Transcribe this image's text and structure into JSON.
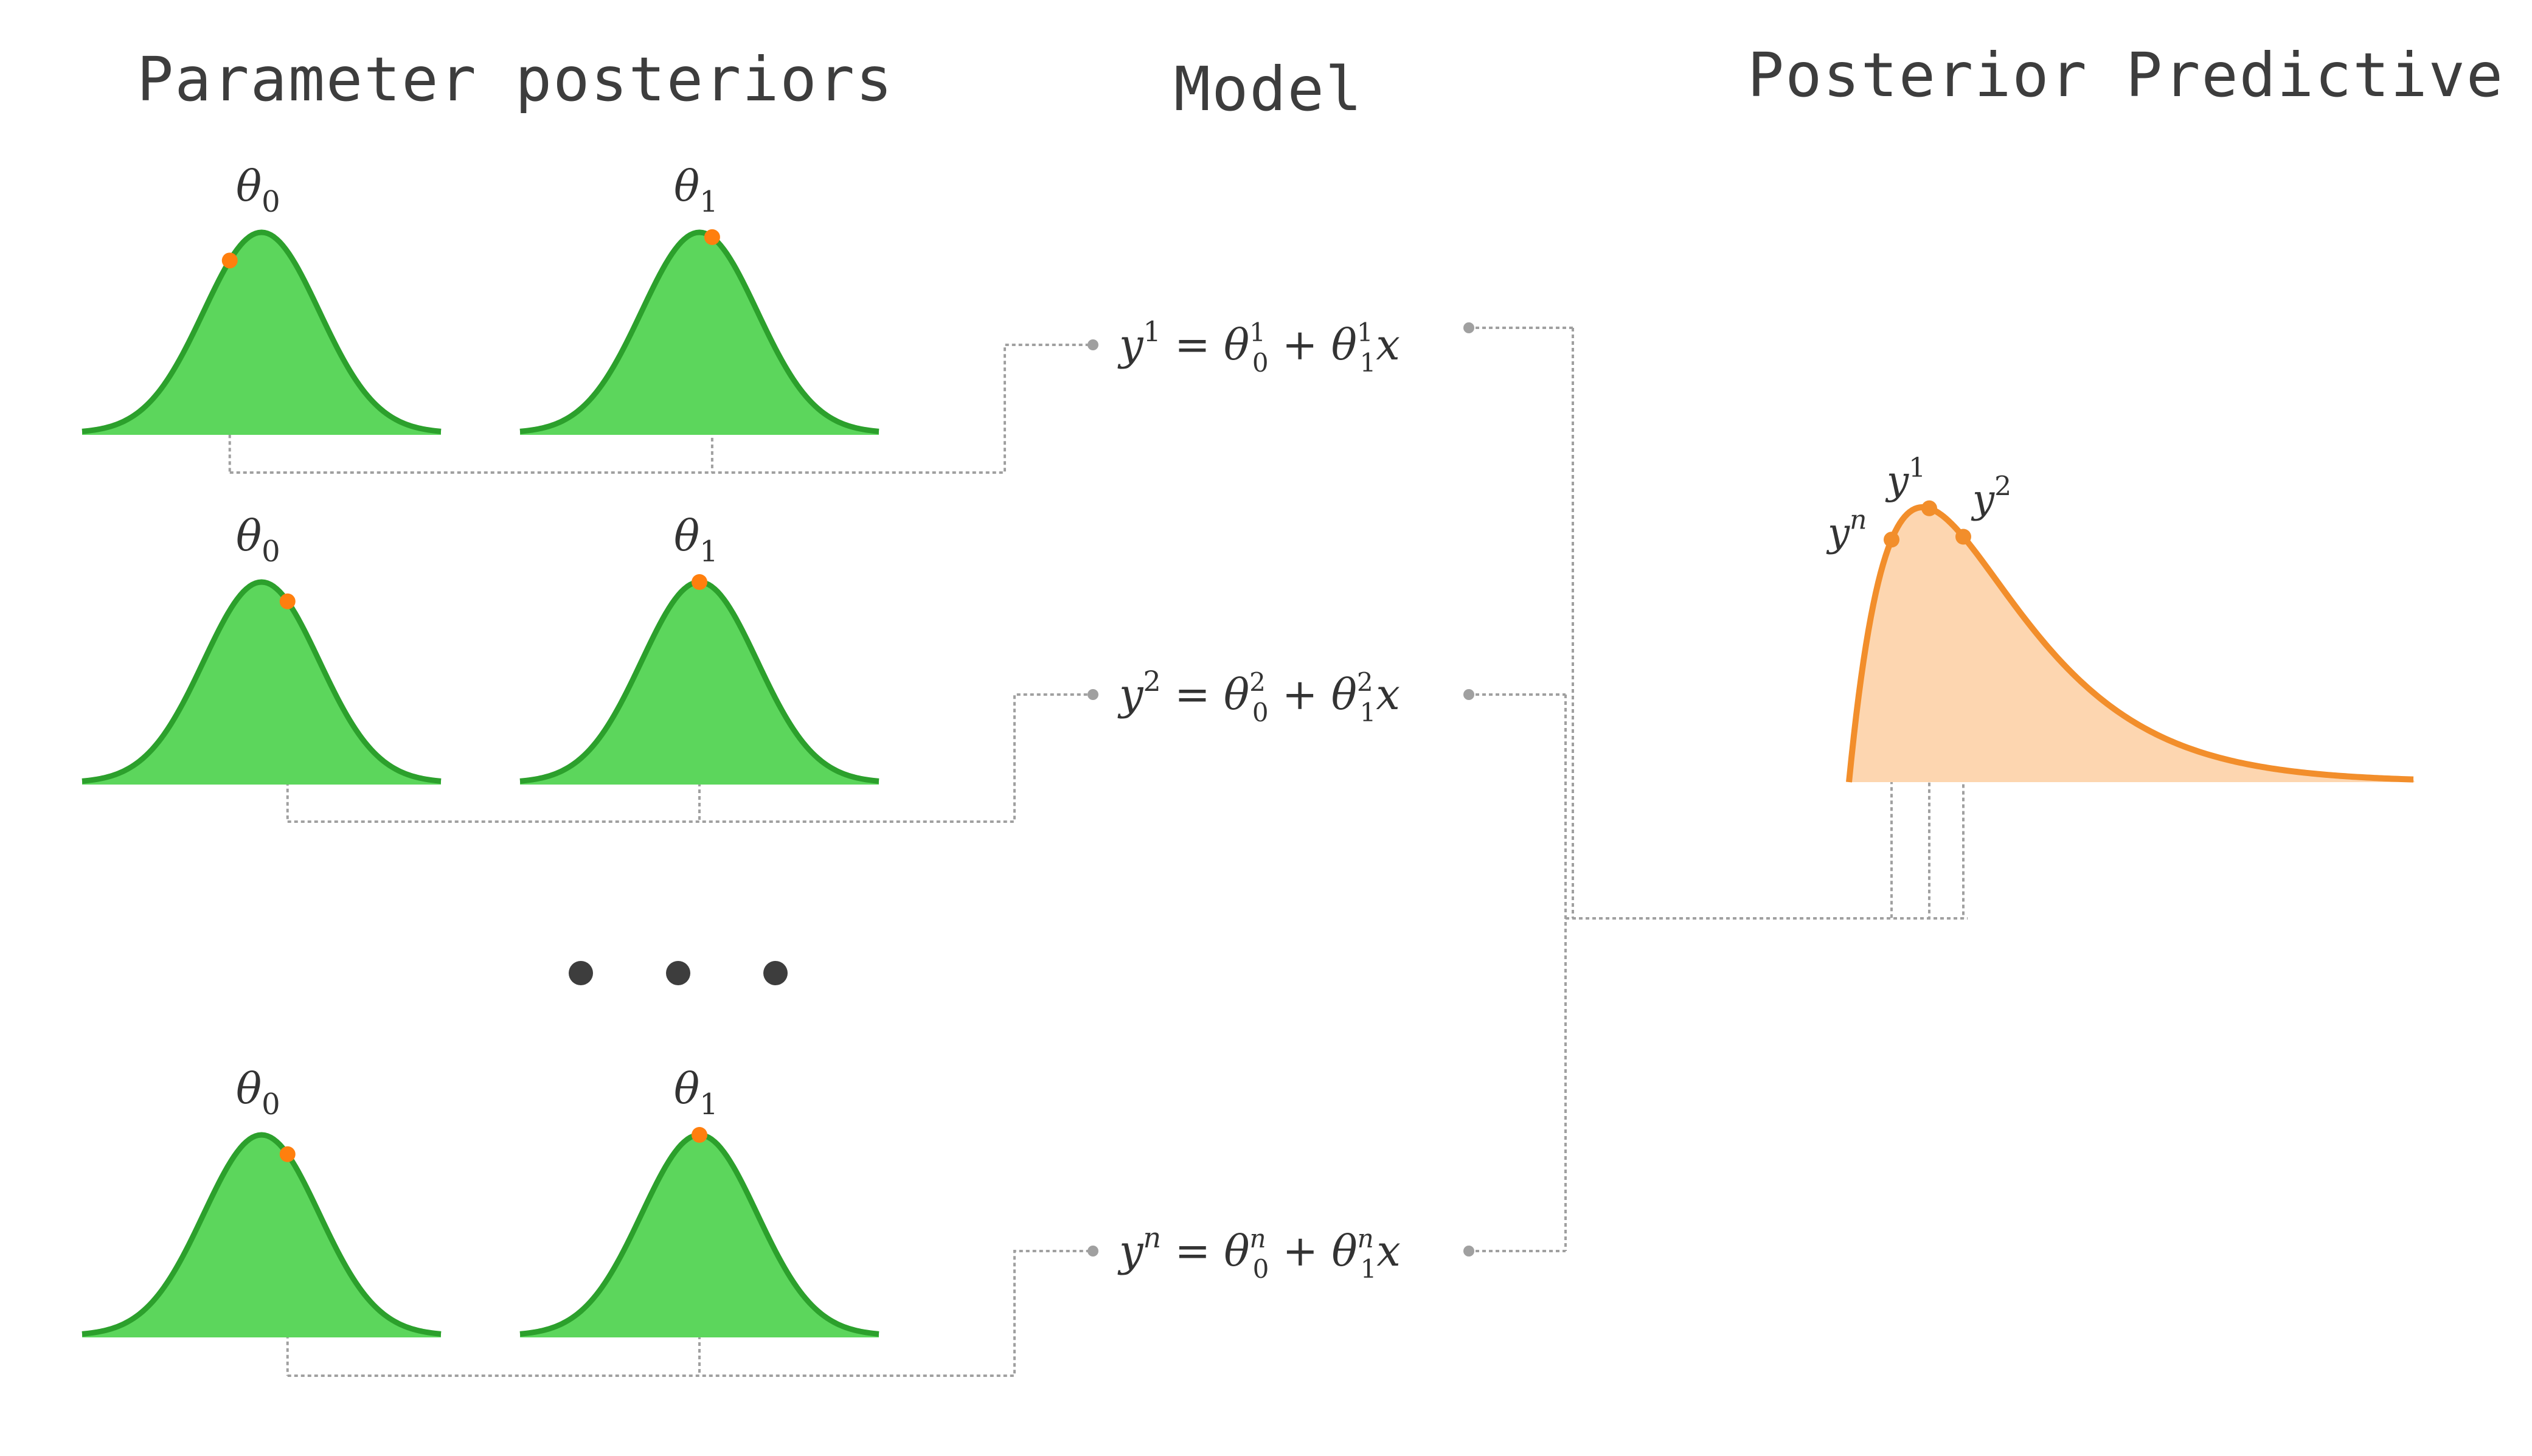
{
  "headings": {
    "parameters": "Parameter posteriors",
    "model": "Model",
    "predictive": "Posterior Predictive"
  },
  "parameter_labels": {
    "theta0": "θ",
    "theta0_sub": "0",
    "theta1": "θ",
    "theta1_sub": "1"
  },
  "rows": [
    {
      "y_sup": "1",
      "th_sup": "1",
      "sample0": -0.55,
      "sample1": 0.22
    },
    {
      "y_sup": "2",
      "th_sup": "2",
      "sample0": 0.45,
      "sample1": 0.0
    },
    {
      "y_sup": "n",
      "th_sup": "n",
      "sample0": 0.45,
      "sample1": 0.0
    }
  ],
  "ellipsis": "• • •",
  "predictive_points": [
    {
      "label_base": "y",
      "label_sup": "1"
    },
    {
      "label_base": "y",
      "label_sup": "2"
    },
    {
      "label_base": "y",
      "label_sup": "n"
    }
  ],
  "colors": {
    "posterior_fill": "#5cd65c",
    "posterior_stroke": "#2ca02c",
    "sample_point": "#ff7f0e",
    "predictive_fill": "#fdd6b0",
    "predictive_stroke": "#f28e2b",
    "connector": "#a0a0a0",
    "text": "#3d3d3d"
  }
}
